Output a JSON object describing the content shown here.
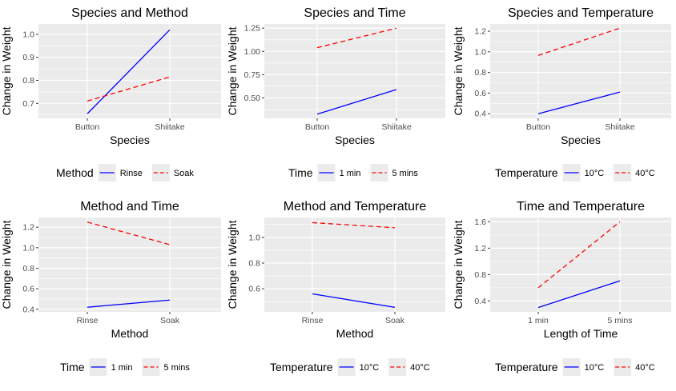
{
  "chart_data": [
    {
      "type": "line",
      "title": "Species and Method",
      "xlabel": "Species",
      "ylabel": "Change in Weight",
      "categories": [
        "Button",
        "Shiitake"
      ],
      "ylim": [
        0.635,
        1.045
      ],
      "yticks": [
        0.7,
        0.8,
        0.9,
        1.0
      ],
      "ytick_labels": [
        "0.7",
        "0.8",
        "0.9",
        "1.0"
      ],
      "legend_title": "Method",
      "legend_position": "bottom",
      "series": [
        {
          "name": "Rinse",
          "values": [
            0.655,
            1.02
          ],
          "color": "#0000ff",
          "dash": "solid"
        },
        {
          "name": "Soak",
          "values": [
            0.71,
            0.815
          ],
          "color": "#ff0000",
          "dash": "dashed"
        }
      ]
    },
    {
      "type": "line",
      "title": "Species and Time",
      "xlabel": "Species",
      "ylabel": "Change in Weight",
      "categories": [
        "Button",
        "Shiitake"
      ],
      "ylim": [
        0.28,
        1.295
      ],
      "yticks": [
        0.5,
        0.75,
        1.0,
        1.25
      ],
      "ytick_labels": [
        "0.50",
        "0.75",
        "1.00",
        "1.25"
      ],
      "legend_title": "Time",
      "legend_position": "bottom",
      "series": [
        {
          "name": "1 min",
          "values": [
            0.325,
            0.59
          ],
          "color": "#0000ff",
          "dash": "solid"
        },
        {
          "name": "5 mins",
          "values": [
            1.04,
            1.25
          ],
          "color": "#ff0000",
          "dash": "dashed"
        }
      ]
    },
    {
      "type": "line",
      "title": "Species and Temperature",
      "xlabel": "Species",
      "ylabel": "Change in Weight",
      "categories": [
        "Button",
        "Shiitake"
      ],
      "ylim": [
        0.355,
        1.27
      ],
      "yticks": [
        0.4,
        0.6,
        0.8,
        1.0,
        1.2
      ],
      "ytick_labels": [
        "0.4",
        "0.6",
        "0.8",
        "1.0",
        "1.2"
      ],
      "legend_title": "Temperature",
      "legend_position": "bottom",
      "series": [
        {
          "name": "10°C",
          "values": [
            0.4,
            0.61
          ],
          "color": "#0000ff",
          "dash": "solid"
        },
        {
          "name": "40°C",
          "values": [
            0.965,
            1.23
          ],
          "color": "#ff0000",
          "dash": "dashed"
        }
      ]
    },
    {
      "type": "line",
      "title": "Method and Time",
      "xlabel": "Method",
      "ylabel": "Change in Weight",
      "categories": [
        "Rinse",
        "Soak"
      ],
      "ylim": [
        0.375,
        1.295
      ],
      "yticks": [
        0.4,
        0.6,
        0.8,
        1.0,
        1.2
      ],
      "ytick_labels": [
        "0.4",
        "0.6",
        "0.8",
        "1.0",
        "1.2"
      ],
      "legend_title": "Time",
      "legend_position": "bottom",
      "series": [
        {
          "name": "1 min",
          "values": [
            0.42,
            0.49
          ],
          "color": "#0000ff",
          "dash": "solid"
        },
        {
          "name": "5 mins",
          "values": [
            1.25,
            1.03
          ],
          "color": "#ff0000",
          "dash": "dashed"
        }
      ]
    },
    {
      "type": "line",
      "title": "Method and Temperature",
      "xlabel": "Method",
      "ylabel": "Change in Weight",
      "categories": [
        "Rinse",
        "Soak"
      ],
      "ylim": [
        0.42,
        1.155
      ],
      "yticks": [
        0.6,
        0.8,
        1.0
      ],
      "ytick_labels": [
        "0.6",
        "0.8",
        "1.0"
      ],
      "legend_title": "Temperature",
      "legend_position": "bottom",
      "series": [
        {
          "name": "10°C",
          "values": [
            0.56,
            0.455
          ],
          "color": "#0000ff",
          "dash": "solid"
        },
        {
          "name": "40°C",
          "values": [
            1.115,
            1.075
          ],
          "color": "#ff0000",
          "dash": "dashed"
        }
      ]
    },
    {
      "type": "line",
      "title": "Time and Temperature",
      "xlabel": "Length of Time",
      "ylabel": "Change in Weight",
      "categories": [
        "1 min",
        "5 mins"
      ],
      "ylim": [
        0.235,
        1.665
      ],
      "yticks": [
        0.4,
        0.8,
        1.2,
        1.6
      ],
      "ytick_labels": [
        "0.4",
        "0.8",
        "1.2",
        "1.6"
      ],
      "legend_title": "Temperature",
      "legend_position": "bottom",
      "series": [
        {
          "name": "10°C",
          "values": [
            0.3,
            0.705
          ],
          "color": "#0000ff",
          "dash": "solid"
        },
        {
          "name": "40°C",
          "values": [
            0.6,
            1.6
          ],
          "color": "#ff0000",
          "dash": "dashed"
        }
      ]
    }
  ]
}
